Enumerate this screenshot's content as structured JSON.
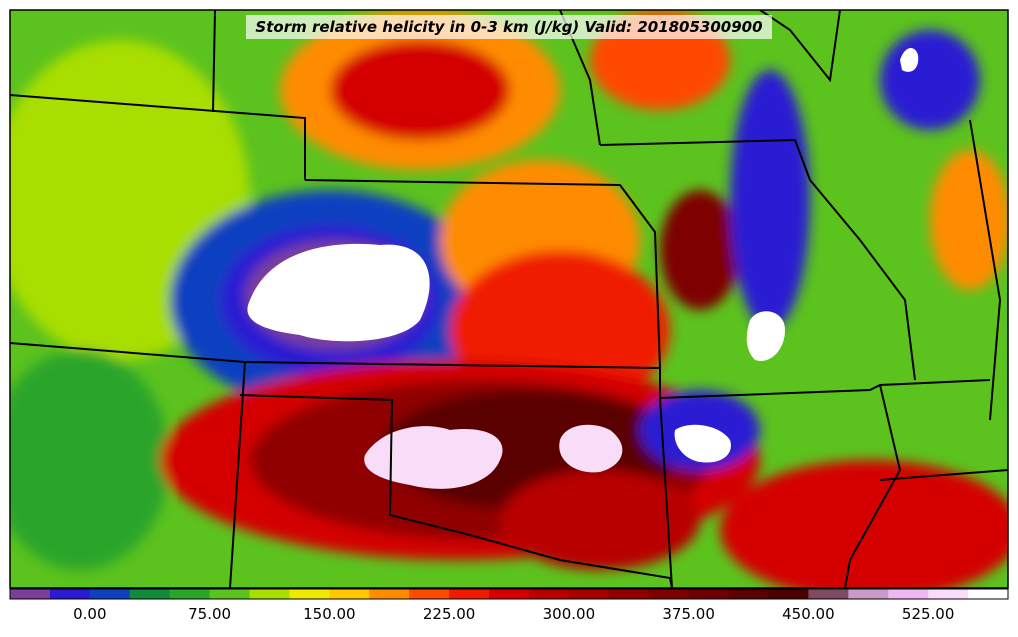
{
  "title": "Storm relative helicity in 0-3 km (J/kg) Valid: 201805300900",
  "colorbar": {
    "colors": [
      "#7b3f9b",
      "#2a1ad2",
      "#1040c0",
      "#118a3a",
      "#2aa52a",
      "#5cc21e",
      "#a8de00",
      "#f0ea00",
      "#ffc800",
      "#ff8c00",
      "#ff4a00",
      "#f01a00",
      "#d40000",
      "#b80000",
      "#a40000",
      "#900000",
      "#7e0000",
      "#6c0000",
      "#5a0000",
      "#4a0000",
      "#7d4a62",
      "#c89ac8",
      "#f0b8f0",
      "#f8dcf8",
      "#ffffff"
    ],
    "ticks": [
      "0.00",
      "75.00",
      "150.00",
      "225.00",
      "300.00",
      "375.00",
      "450.00",
      "525.00"
    ]
  }
}
